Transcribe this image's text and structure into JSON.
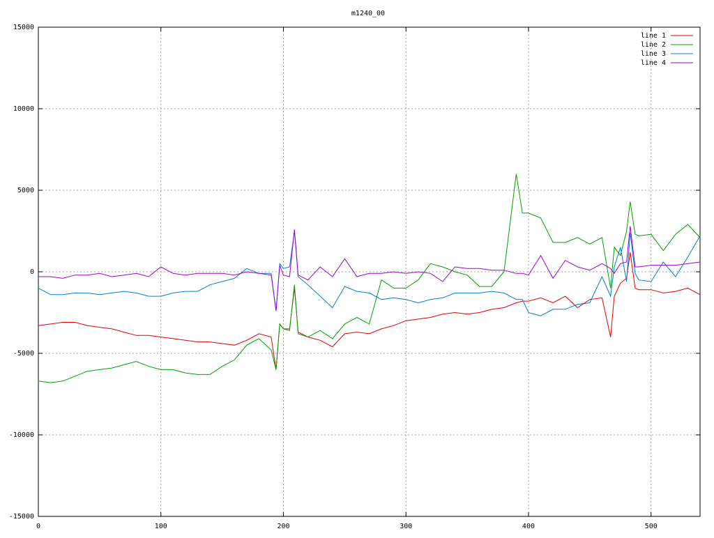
{
  "chart_data": {
    "type": "line",
    "title": "m1240_00",
    "x": [
      0,
      10,
      20,
      30,
      40,
      50,
      60,
      70,
      80,
      90,
      100,
      110,
      120,
      130,
      140,
      150,
      160,
      170,
      180,
      190,
      194,
      197,
      200,
      205,
      209,
      212,
      220,
      230,
      240,
      250,
      260,
      270,
      280,
      290,
      300,
      310,
      320,
      330,
      340,
      350,
      360,
      370,
      380,
      390,
      395,
      400,
      410,
      420,
      430,
      440,
      450,
      460,
      467,
      470,
      475,
      480,
      483,
      487,
      490,
      500,
      510,
      520,
      530,
      540
    ],
    "series": [
      {
        "name": "line 1",
        "color": "#e00000",
        "values": [
          -3300,
          -3200,
          -3100,
          -3100,
          -3300,
          -3400,
          -3500,
          -3700,
          -3900,
          -3900,
          -4000,
          -4100,
          -4200,
          -4300,
          -4300,
          -4400,
          -4500,
          -4200,
          -3800,
          -4000,
          -6000,
          -3200,
          -3500,
          -3500,
          -1000,
          -3700,
          -4000,
          -4200,
          -4600,
          -3800,
          -3700,
          -3800,
          -3500,
          -3300,
          -3000,
          -2900,
          -2800,
          -2600,
          -2500,
          -2600,
          -2500,
          -2300,
          -2200,
          -1900,
          -1800,
          -1800,
          -1600,
          -1900,
          -1500,
          -2200,
          -1700,
          -1600,
          -4000,
          -1500,
          -700,
          -400,
          1200,
          -1000,
          -1100,
          -1100,
          -1300,
          -1200,
          -1000,
          -1400
        ]
      },
      {
        "name": "line 2",
        "color": "#00a000",
        "values": [
          -6700,
          -6800,
          -6700,
          -6400,
          -6100,
          -6000,
          -5900,
          -5700,
          -5500,
          -5800,
          -6000,
          -6000,
          -6200,
          -6300,
          -6300,
          -5800,
          -5400,
          -4500,
          -4100,
          -4800,
          -6000,
          -3200,
          -3500,
          -3600,
          -800,
          -3800,
          -4000,
          -3600,
          -4100,
          -3200,
          -2800,
          -3200,
          -500,
          -1000,
          -1000,
          -500,
          500,
          300,
          0,
          -200,
          -900,
          -900,
          0,
          6000,
          3600,
          3600,
          3300,
          1800,
          1800,
          2100,
          1700,
          2100,
          -1000,
          1500,
          1000,
          2500,
          4300,
          2300,
          2200,
          2300,
          1300,
          2300,
          2900,
          2100
        ]
      },
      {
        "name": "line 3",
        "color": "#0080d0",
        "values": [
          -1000,
          -1400,
          -1400,
          -1300,
          -1300,
          -1400,
          -1300,
          -1200,
          -1300,
          -1500,
          -1500,
          -1300,
          -1200,
          -1200,
          -800,
          -600,
          -400,
          200,
          -100,
          -100,
          -2400,
          500,
          200,
          300,
          2500,
          -300,
          -800,
          -1500,
          -2200,
          -900,
          -1200,
          -1300,
          -1700,
          -1600,
          -1700,
          -1900,
          -1700,
          -1600,
          -1300,
          -1300,
          -1300,
          -1200,
          -1300,
          -1700,
          -1700,
          -2500,
          -2700,
          -2300,
          -2300,
          -2000,
          -1900,
          -300,
          -1500,
          300,
          1500,
          -600,
          2400,
          -100,
          -500,
          -600,
          600,
          -300,
          900,
          2200
        ]
      },
      {
        "name": "line 4",
        "color": "#a000d0",
        "values": [
          -300,
          -300,
          -400,
          -200,
          -200,
          -100,
          -300,
          -200,
          -100,
          -300,
          300,
          -100,
          -200,
          -100,
          -100,
          -100,
          -200,
          0,
          -100,
          -200,
          -2400,
          400,
          -200,
          -300,
          2600,
          -200,
          -500,
          300,
          -300,
          800,
          -300,
          -100,
          -100,
          0,
          -100,
          0,
          -100,
          -600,
          300,
          200,
          200,
          100,
          100,
          -100,
          -100,
          -200,
          1000,
          -400,
          700,
          300,
          100,
          500,
          200,
          -100,
          500,
          600,
          2800,
          300,
          300,
          400,
          400,
          400,
          500,
          600
        ]
      }
    ],
    "xlim": [
      0,
      540
    ],
    "xticks": [
      0,
      100,
      200,
      300,
      400,
      500
    ],
    "ylim": [
      -15000,
      15000
    ],
    "yticks": [
      -15000,
      -10000,
      -5000,
      0,
      5000,
      10000,
      15000
    ],
    "grid": true,
    "legend": "top-right"
  }
}
